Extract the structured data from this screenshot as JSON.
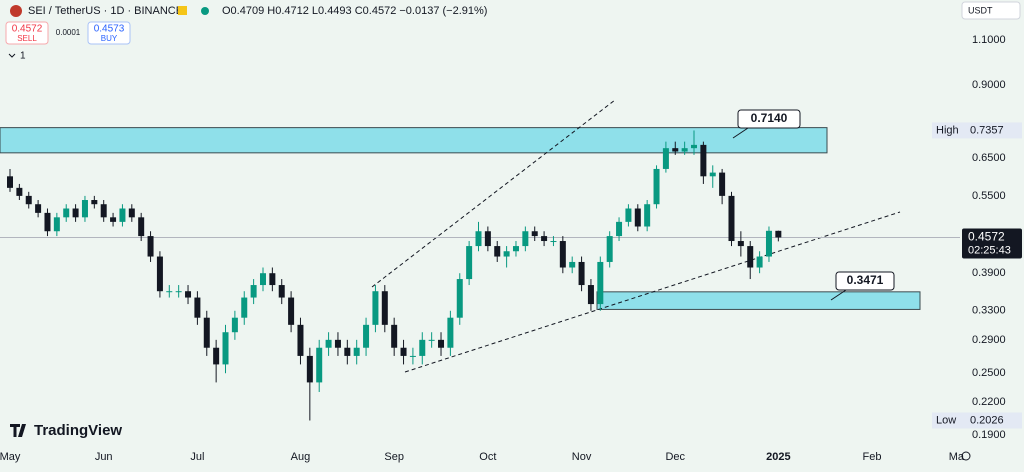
{
  "chart_data": {
    "type": "candlestick",
    "title": "SEI / TetherUS · 1D · BINANCE",
    "subtitle": "O0.4709 H0.4712 L0.4493 C0.4572 −0.0137 (−2.91%)",
    "categories": [
      "May",
      null,
      null,
      null,
      null,
      null,
      null,
      null,
      null,
      null,
      "Jun",
      null,
      null,
      null,
      null,
      null,
      null,
      null,
      null,
      null,
      "Jul",
      null,
      null,
      null,
      null,
      null,
      null,
      null,
      null,
      null,
      null,
      "Aug",
      null,
      null,
      null,
      null,
      null,
      null,
      null,
      null,
      null,
      "Sep",
      null,
      null,
      null,
      null,
      null,
      null,
      null,
      null,
      null,
      "Oct",
      null,
      null,
      null,
      null,
      null,
      null,
      null,
      null,
      null,
      "Nov",
      null,
      null,
      null,
      null,
      null,
      null,
      null,
      null,
      null,
      "Dec",
      null,
      null,
      null,
      null,
      null,
      null,
      null,
      null,
      null,
      null,
      "2025",
      null,
      null,
      null,
      null,
      null,
      null,
      null,
      null,
      null,
      "Feb",
      null,
      null,
      null,
      null,
      null,
      null,
      null,
      null,
      "Ma"
    ],
    "open": [
      0.6,
      0.57,
      0.55,
      0.53,
      0.51,
      0.47,
      0.5,
      0.52,
      0.5,
      0.54,
      0.53,
      0.5,
      0.49,
      0.52,
      0.5,
      0.46,
      0.42,
      0.36,
      0.36,
      0.36,
      0.35,
      0.32,
      0.28,
      0.26,
      0.3,
      0.32,
      0.35,
      0.37,
      0.39,
      0.37,
      0.35,
      0.31,
      0.27,
      0.24,
      0.28,
      0.29,
      0.28,
      0.27,
      0.28,
      0.31,
      0.36,
      0.31,
      0.28,
      0.27,
      0.27,
      0.29,
      0.29,
      0.28,
      0.32,
      0.38,
      0.44,
      0.47,
      0.44,
      0.42,
      0.43,
      0.44,
      0.47,
      0.46,
      0.45,
      0.45,
      0.4,
      0.41,
      0.37,
      0.34,
      0.41,
      0.46,
      0.49,
      0.52,
      0.48,
      0.53,
      0.62,
      0.68,
      0.67,
      0.68,
      0.69,
      0.6,
      0.61,
      0.55,
      0.45,
      0.44,
      0.4,
      0.42,
      0.4709,
      null,
      null,
      null,
      null,
      null,
      null,
      null,
      null,
      null,
      null,
      null,
      null,
      null,
      null,
      null,
      null,
      null,
      null,
      null
    ],
    "high": [
      0.62,
      0.58,
      0.56,
      0.54,
      0.52,
      0.51,
      0.53,
      0.53,
      0.55,
      0.55,
      0.54,
      0.51,
      0.53,
      0.53,
      0.51,
      0.47,
      0.43,
      0.37,
      0.37,
      0.37,
      0.36,
      0.33,
      0.29,
      0.31,
      0.33,
      0.36,
      0.38,
      0.4,
      0.4,
      0.38,
      0.36,
      0.32,
      0.28,
      0.29,
      0.3,
      0.3,
      0.29,
      0.29,
      0.32,
      0.37,
      0.37,
      0.32,
      0.29,
      0.28,
      0.3,
      0.3,
      0.3,
      0.33,
      0.39,
      0.45,
      0.49,
      0.48,
      0.45,
      0.44,
      0.45,
      0.48,
      0.48,
      0.47,
      0.46,
      0.46,
      0.42,
      0.42,
      0.38,
      0.42,
      0.47,
      0.5,
      0.53,
      0.53,
      0.54,
      0.63,
      0.7,
      0.7,
      0.7,
      0.7357,
      0.7,
      0.63,
      0.62,
      0.56,
      0.47,
      0.45,
      0.43,
      0.48,
      0.4712,
      null,
      null,
      null,
      null,
      null,
      null,
      null,
      null,
      null,
      null,
      null,
      null,
      null,
      null,
      null,
      null,
      null,
      null,
      null
    ],
    "low": [
      0.56,
      0.54,
      0.52,
      0.5,
      0.46,
      0.46,
      0.49,
      0.49,
      0.49,
      0.52,
      0.49,
      0.48,
      0.48,
      0.49,
      0.45,
      0.41,
      0.35,
      0.35,
      0.35,
      0.34,
      0.31,
      0.27,
      0.24,
      0.25,
      0.29,
      0.31,
      0.34,
      0.36,
      0.36,
      0.34,
      0.3,
      0.26,
      0.2026,
      0.23,
      0.27,
      0.27,
      0.26,
      0.26,
      0.27,
      0.3,
      0.3,
      0.27,
      0.26,
      0.26,
      0.26,
      0.28,
      0.27,
      0.27,
      0.31,
      0.37,
      0.43,
      0.43,
      0.41,
      0.4,
      0.42,
      0.43,
      0.45,
      0.44,
      0.44,
      0.39,
      0.39,
      0.36,
      0.33,
      0.33,
      0.4,
      0.45,
      0.48,
      0.47,
      0.47,
      0.52,
      0.61,
      0.66,
      0.66,
      0.66,
      0.58,
      0.57,
      0.53,
      0.44,
      0.42,
      0.38,
      0.39,
      0.41,
      0.4493,
      null,
      null,
      null,
      null,
      null,
      null,
      null,
      null,
      null,
      null,
      null,
      null,
      null,
      null,
      null,
      null,
      null,
      null,
      null
    ],
    "close": [
      0.57,
      0.55,
      0.53,
      0.51,
      0.47,
      0.5,
      0.52,
      0.5,
      0.54,
      0.53,
      0.5,
      0.49,
      0.52,
      0.5,
      0.46,
      0.42,
      0.36,
      0.36,
      0.36,
      0.35,
      0.32,
      0.28,
      0.26,
      0.3,
      0.32,
      0.35,
      0.37,
      0.39,
      0.37,
      0.35,
      0.31,
      0.27,
      0.24,
      0.28,
      0.29,
      0.28,
      0.27,
      0.28,
      0.31,
      0.36,
      0.31,
      0.28,
      0.27,
      0.27,
      0.29,
      0.29,
      0.28,
      0.32,
      0.38,
      0.44,
      0.47,
      0.44,
      0.42,
      0.43,
      0.44,
      0.47,
      0.46,
      0.45,
      0.45,
      0.4,
      0.41,
      0.37,
      0.34,
      0.41,
      0.46,
      0.49,
      0.52,
      0.48,
      0.53,
      0.62,
      0.68,
      0.67,
      0.68,
      0.69,
      0.6,
      0.61,
      0.55,
      0.45,
      0.44,
      0.4,
      0.42,
      0.4709,
      0.4572,
      null,
      null,
      null,
      null,
      null,
      null,
      null,
      null,
      null,
      null,
      null,
      null,
      null,
      null,
      null,
      null,
      null,
      null,
      null
    ],
    "up_color": "#089981",
    "down_color": "#131722",
    "log_scale": true,
    "ylim": [
      0.1817,
      1.314
    ],
    "yticks": [
      {
        "value": 1.1,
        "label": "1.1000"
      },
      {
        "value": 0.9,
        "label": "0.9000"
      },
      {
        "value": 0.65,
        "label": "0.6500"
      },
      {
        "value": 0.55,
        "label": "0.5500"
      },
      {
        "value": 0.39,
        "label": "0.3900"
      },
      {
        "value": 0.33,
        "label": "0.3300"
      },
      {
        "value": 0.29,
        "label": "0.2900"
      },
      {
        "value": 0.25,
        "label": "0.2500"
      },
      {
        "value": 0.22,
        "label": "0.2200"
      },
      {
        "value": 0.19,
        "label": "0.1900"
      }
    ],
    "zones": [
      {
        "ylim": [
          0.666,
          0.745
        ],
        "color": "#8fe0ea"
      },
      {
        "ylim": [
          0.332,
          0.359
        ],
        "color": "#8fe0ea"
      }
    ],
    "annotations": [
      "0.7140",
      "0.3471"
    ],
    "price_tags": [
      {
        "label": "High",
        "value": 0.7357
      },
      {
        "value": 0.4572,
        "label": "02:25:43"
      },
      {
        "label": "Low",
        "value": 0.2026
      }
    ]
  },
  "ui": {
    "sell_price": "0.4572",
    "sell_label": "SELL",
    "spread": "0.0001",
    "buy_price": "0.4573",
    "buy_label": "BUY",
    "interval": "1",
    "currency": "USDT",
    "logo": "TradingView"
  }
}
